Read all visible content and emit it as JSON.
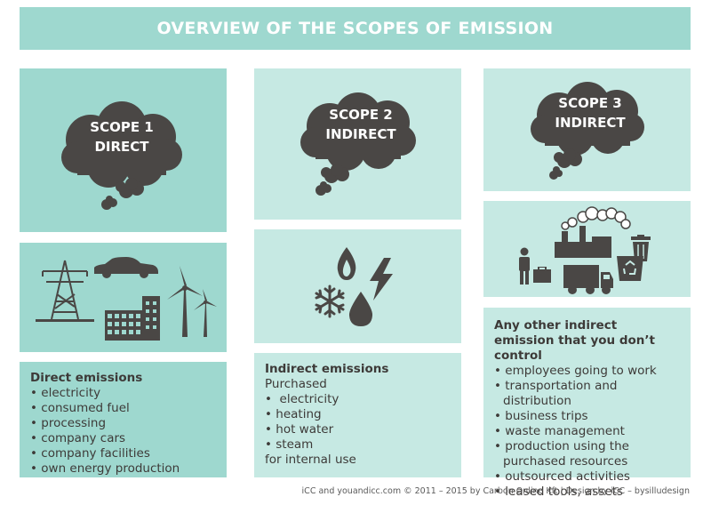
{
  "header": {
    "title": "OVERVIEW OF THE SCOPES OF EMISSION"
  },
  "scope1": {
    "cloud_line1": "SCOPE 1",
    "cloud_line2": "DIRECT",
    "title": "Direct emissions",
    "items": [
      "electricity",
      "consumed fuel",
      "processing",
      "company cars",
      "company facilities",
      "own energy production"
    ]
  },
  "scope2": {
    "cloud_line1": "SCOPE 2",
    "cloud_line2": "INDIRECT",
    "title": "Indirect emissions",
    "line1": "Purchased",
    "items": [
      " electricity",
      "heating",
      "hot water",
      "steam"
    ],
    "line_end": "for internal use"
  },
  "scope3": {
    "cloud_line1": "SCOPE 3",
    "cloud_line2": "INDIRECT",
    "title": "Any other indirect emission that you don’t control",
    "items": [
      "employees going to work",
      "transportation and distribution",
      "business trips",
      "waste management",
      "production using the purchased resources",
      "outsourced activities",
      "leased tools, assets"
    ]
  },
  "footer": {
    "credit": "iCC and youandicc.com © 2011 – 2015 by Carbon Online Kft.| Design by iCC – bysilludesign"
  },
  "colors": {
    "teal": "#9ed8cf",
    "light_teal": "#c6e9e3",
    "dark": "#4a4745",
    "white": "#ffffff"
  },
  "icons": [
    "thought-cloud-icon",
    "power-pylon-icon",
    "car-icon",
    "building-icon",
    "wind-turbine-icon",
    "flame-icon",
    "lightning-icon",
    "snowflake-icon",
    "water-drop-icon",
    "factory-icon",
    "person-icon",
    "truck-icon",
    "trash-can-icon",
    "recycle-bin-icon"
  ]
}
